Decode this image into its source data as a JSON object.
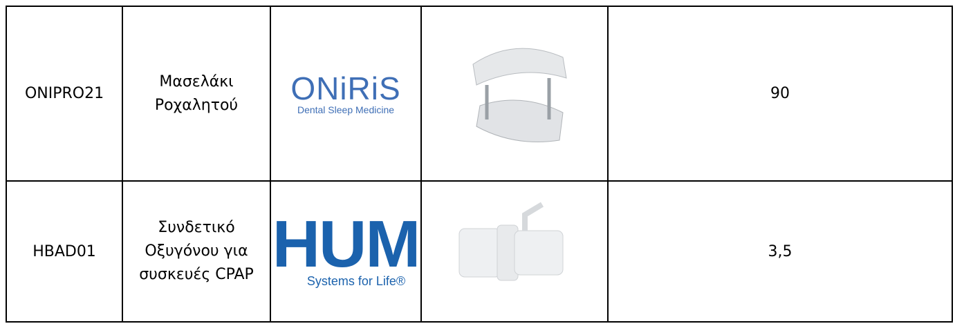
{
  "table": {
    "rows": [
      {
        "code": "ONIPRO21",
        "name": [
          "Μασελάκι Ροχαλητού"
        ],
        "logo": {
          "brand": "ONiRiS",
          "tagline": "Dental Sleep Medicine"
        },
        "price": "90"
      },
      {
        "code": "HBAD01",
        "name": [
          "Συνδετικό Οξυγόνου για",
          "συσκευές CPAP"
        ],
        "logo": {
          "brand": "HUM",
          "tagline": "Systems for Life®"
        },
        "price": "3,5"
      }
    ]
  }
}
